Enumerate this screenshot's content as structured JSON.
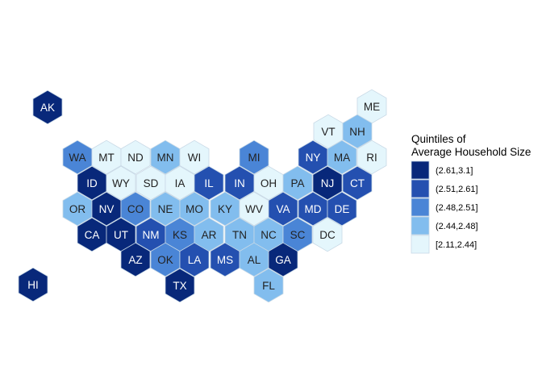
{
  "chart_data": {
    "type": "hexbin-map",
    "legend": {
      "title_line1": "Quintiles of",
      "title_line2": "Average Household Size",
      "placement": "right",
      "classes": [
        {
          "label": "(2.61,3.1]",
          "color": "#08287A"
        },
        {
          "label": "(2.51,2.61]",
          "color": "#2450B0"
        },
        {
          "label": "(2.48,2.51]",
          "color": "#4A85D6"
        },
        {
          "label": "(2.44,2.48]",
          "color": "#82BDEE"
        },
        {
          "label": "[2.11,2.44]",
          "color": "#E4F6FC"
        }
      ]
    },
    "states": [
      {
        "abbr": "AK",
        "quintile": 0
      },
      {
        "abbr": "HI",
        "quintile": 0
      },
      {
        "abbr": "ME",
        "quintile": 4
      },
      {
        "abbr": "VT",
        "quintile": 4
      },
      {
        "abbr": "NH",
        "quintile": 3
      },
      {
        "abbr": "WA",
        "quintile": 2
      },
      {
        "abbr": "MT",
        "quintile": 4
      },
      {
        "abbr": "ND",
        "quintile": 4
      },
      {
        "abbr": "MN",
        "quintile": 3
      },
      {
        "abbr": "WI",
        "quintile": 4
      },
      {
        "abbr": "MI",
        "quintile": 2
      },
      {
        "abbr": "NY",
        "quintile": 1
      },
      {
        "abbr": "MA",
        "quintile": 3
      },
      {
        "abbr": "RI",
        "quintile": 4
      },
      {
        "abbr": "ID",
        "quintile": 0
      },
      {
        "abbr": "WY",
        "quintile": 4
      },
      {
        "abbr": "SD",
        "quintile": 4
      },
      {
        "abbr": "IA",
        "quintile": 4
      },
      {
        "abbr": "IL",
        "quintile": 1
      },
      {
        "abbr": "IN",
        "quintile": 1
      },
      {
        "abbr": "OH",
        "quintile": 4
      },
      {
        "abbr": "PA",
        "quintile": 3
      },
      {
        "abbr": "NJ",
        "quintile": 0
      },
      {
        "abbr": "CT",
        "quintile": 1
      },
      {
        "abbr": "OR",
        "quintile": 3
      },
      {
        "abbr": "NV",
        "quintile": 0
      },
      {
        "abbr": "CO",
        "quintile": 2
      },
      {
        "abbr": "NE",
        "quintile": 3
      },
      {
        "abbr": "MO",
        "quintile": 3
      },
      {
        "abbr": "KY",
        "quintile": 3
      },
      {
        "abbr": "WV",
        "quintile": 4
      },
      {
        "abbr": "VA",
        "quintile": 1
      },
      {
        "abbr": "MD",
        "quintile": 1
      },
      {
        "abbr": "DE",
        "quintile": 1
      },
      {
        "abbr": "CA",
        "quintile": 0
      },
      {
        "abbr": "UT",
        "quintile": 0
      },
      {
        "abbr": "NM",
        "quintile": 1
      },
      {
        "abbr": "KS",
        "quintile": 2
      },
      {
        "abbr": "AR",
        "quintile": 3
      },
      {
        "abbr": "TN",
        "quintile": 3
      },
      {
        "abbr": "NC",
        "quintile": 3
      },
      {
        "abbr": "SC",
        "quintile": 2
      },
      {
        "abbr": "DC",
        "quintile": 4
      },
      {
        "abbr": "AZ",
        "quintile": 0
      },
      {
        "abbr": "OK",
        "quintile": 2
      },
      {
        "abbr": "LA",
        "quintile": 1
      },
      {
        "abbr": "MS",
        "quintile": 1
      },
      {
        "abbr": "AL",
        "quintile": 3
      },
      {
        "abbr": "GA",
        "quintile": 0
      },
      {
        "abbr": "TX",
        "quintile": 0
      },
      {
        "abbr": "FL",
        "quintile": 3
      }
    ]
  }
}
